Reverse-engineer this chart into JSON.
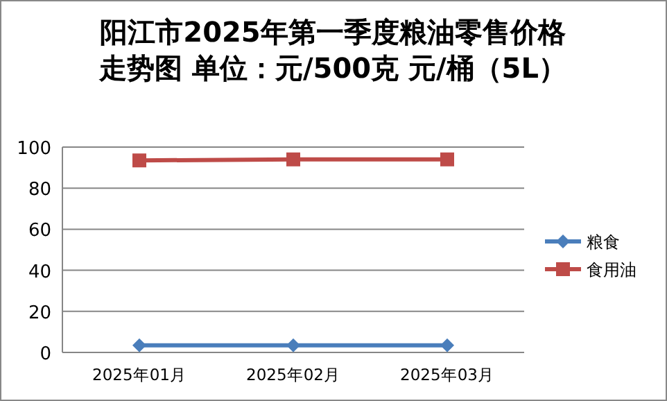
{
  "chart_data": {
    "type": "line",
    "title": "阳江市2025年第一季度粮油零售价格走势图    单位：元/500克    元/桶（5L）",
    "categories": [
      "2025年01月",
      "2025年02月",
      "2025年03月"
    ],
    "series": [
      {
        "name": "粮食",
        "color": "#4a7ebb",
        "marker": "diamond",
        "values": [
          3.5,
          3.5,
          3.5
        ]
      },
      {
        "name": "食用油",
        "color": "#be4b48",
        "marker": "square",
        "values": [
          93.5,
          94,
          94
        ]
      }
    ],
    "ylim": [
      0,
      100
    ],
    "yticks": [
      0,
      20,
      40,
      60,
      80,
      100
    ],
    "grid": "y",
    "legend": "right"
  }
}
